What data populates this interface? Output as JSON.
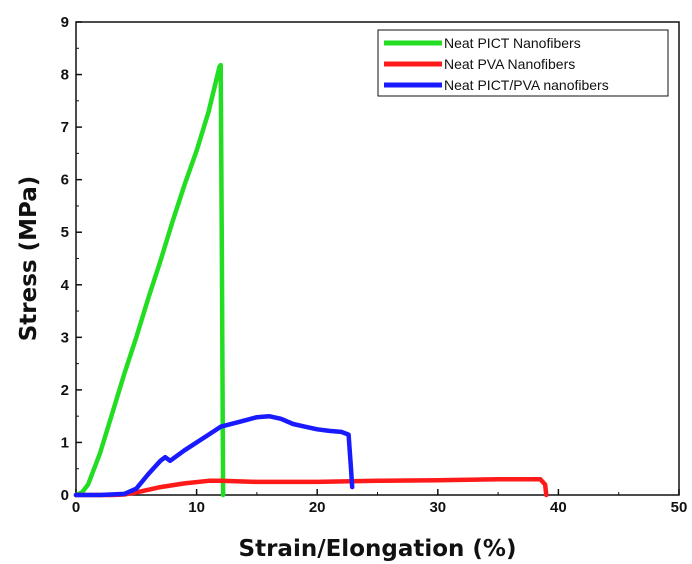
{
  "chart_data": {
    "type": "line",
    "title": "",
    "xlabel": "Strain/Elongation (%)",
    "ylabel": "Stress (MPa)",
    "xlim": [
      0,
      50
    ],
    "ylim": [
      0,
      9
    ],
    "xticks": [
      0,
      10,
      20,
      30,
      40,
      50
    ],
    "yticks": [
      0,
      1,
      2,
      3,
      4,
      5,
      6,
      7,
      8,
      9
    ],
    "xticklabels": [
      "0",
      "10",
      "20",
      "30",
      "40",
      "50"
    ],
    "yticklabels": [
      "0",
      "1",
      "2",
      "3",
      "4",
      "5",
      "6",
      "7",
      "8",
      "9"
    ],
    "grid": false,
    "legend_position": "top-right",
    "series": [
      {
        "name": "Neat PICT Nanofibers",
        "color": "#22dd22",
        "x": [
          0,
          0.5,
          1,
          2,
          3,
          4,
          5,
          6,
          7,
          8,
          9,
          10,
          11,
          11.9,
          12.0,
          12.1,
          12.2
        ],
        "y": [
          0,
          0.05,
          0.2,
          0.8,
          1.55,
          2.3,
          3.0,
          3.75,
          4.45,
          5.2,
          5.9,
          6.55,
          7.3,
          8.15,
          8.18,
          4.5,
          0.0
        ]
      },
      {
        "name": "Neat PVA Nanofibers",
        "color": "#ff1a1a",
        "x": [
          0,
          3,
          4,
          5,
          7,
          9,
          11,
          12,
          15,
          20,
          25,
          30,
          35,
          38.5,
          38.9,
          39.0
        ],
        "y": [
          0,
          0,
          0.01,
          0.05,
          0.15,
          0.22,
          0.27,
          0.27,
          0.25,
          0.25,
          0.27,
          0.28,
          0.3,
          0.3,
          0.2,
          0.0
        ]
      },
      {
        "name": "Neat PICT/PVA nanofibers",
        "color": "#1a1aff",
        "x": [
          0,
          2,
          4,
          5,
          6,
          7,
          7.4,
          7.8,
          9,
          11,
          12,
          14,
          15,
          16,
          17,
          18,
          19,
          20,
          21,
          22,
          22.6,
          22.8,
          22.9
        ],
        "y": [
          0,
          0,
          0.02,
          0.12,
          0.4,
          0.65,
          0.72,
          0.65,
          0.85,
          1.15,
          1.3,
          1.42,
          1.48,
          1.5,
          1.45,
          1.35,
          1.3,
          1.25,
          1.22,
          1.2,
          1.15,
          0.5,
          0.15
        ]
      }
    ]
  }
}
